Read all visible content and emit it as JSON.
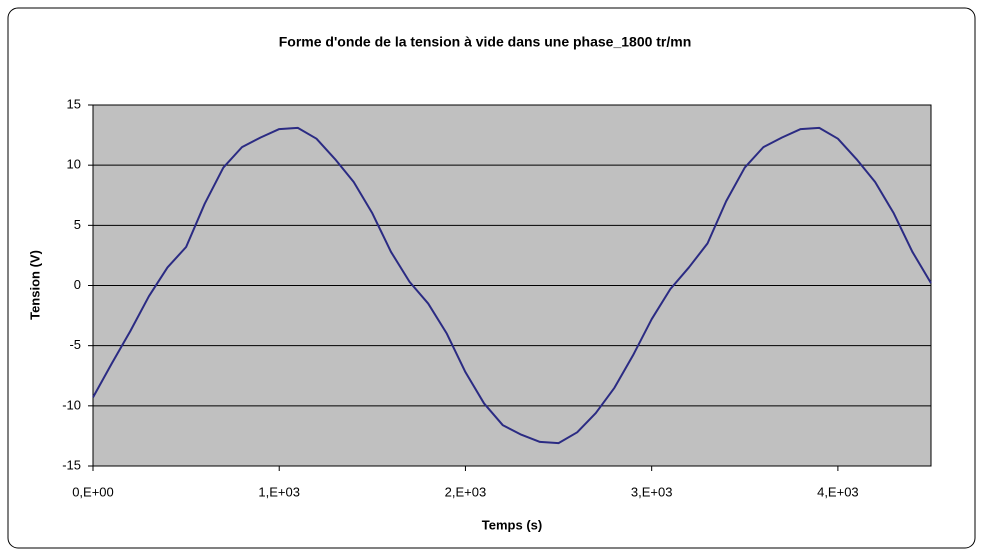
{
  "chart_data": {
    "type": "line",
    "title": "Forme d'onde de la tension à vide dans une phase_1800 tr/mn",
    "x_label": "Temps (s)",
    "y_label": "Tension (V)",
    "x": [
      0,
      100,
      200,
      300,
      400,
      500,
      600,
      700,
      800,
      900,
      1000,
      1100,
      1200,
      1300,
      1400,
      1500,
      1600,
      1700,
      1800,
      1900,
      2000,
      2100,
      2200,
      2300,
      2400,
      2500,
      2600,
      2700,
      2800,
      2900,
      3000,
      3100,
      3200,
      3300,
      3400,
      3500,
      3600,
      3700,
      3800,
      3900,
      4000,
      4100,
      4200,
      4300,
      4400,
      4500
    ],
    "values": [
      -9.3,
      -6.5,
      -3.8,
      -0.9,
      1.5,
      3.2,
      6.8,
      9.8,
      11.5,
      12.3,
      13.0,
      13.1,
      12.2,
      10.5,
      8.6,
      6.0,
      2.8,
      0.3,
      -1.5,
      -4.0,
      -7.2,
      -9.8,
      -11.6,
      -12.4,
      -13.0,
      -13.1,
      -12.2,
      -10.6,
      -8.5,
      -5.8,
      -2.8,
      -0.3,
      1.5,
      3.5,
      7.0,
      9.8,
      11.5,
      12.3,
      13.0,
      13.1,
      12.2,
      10.5,
      8.6,
      6.0,
      2.8,
      0.2
    ],
    "color": "#2b2b83",
    "xlim": [
      0,
      4500
    ],
    "xticks": [
      {
        "value": 0,
        "label": "0,E+00"
      },
      {
        "value": 1000,
        "label": "1,E+03"
      },
      {
        "value": 2000,
        "label": "2,E+03"
      },
      {
        "value": 3000,
        "label": "3,E+03"
      },
      {
        "value": 4000,
        "label": "4,E+03"
      }
    ],
    "ylim": [
      -15,
      15
    ],
    "yticks": [
      -15,
      -10,
      -5,
      0,
      5,
      10,
      15
    ],
    "grid": true,
    "plot_background": "#c0c0c0"
  }
}
